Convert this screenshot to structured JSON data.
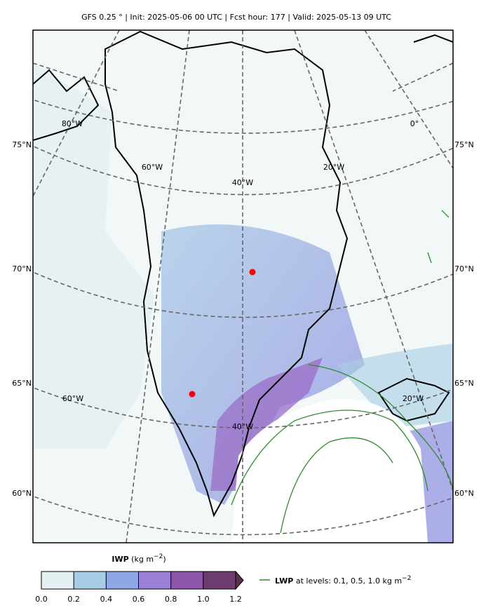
{
  "header": {
    "title": "GFS 0.25 °  |  Init: 2025-05-06 00 UTC  |  Fcst hour: 177  |  Valid: 2025-05-13 09 UTC"
  },
  "map": {
    "lat_labels": [
      "75°N",
      "70°N",
      "65°N",
      "60°N"
    ],
    "lon_labels": [
      "80°W",
      "60°W",
      "40°W",
      "20°W",
      "0°",
      "60°W",
      "20°W",
      "40°W"
    ]
  },
  "colorbar": {
    "label_bold": "IWP",
    "label_unit": "(kg m",
    "label_exp": "−2",
    "label_close": ")",
    "lim": [
      0,
      1.2
    ],
    "ticks": [
      {
        "value": 0,
        "label": "0.0"
      },
      {
        "value": 0.2,
        "label": "0.2"
      },
      {
        "value": 0.4,
        "label": "0.4"
      },
      {
        "value": 0.6,
        "label": "0.6"
      },
      {
        "value": 0.8,
        "label": "0.8"
      },
      {
        "value": 1,
        "label": "1.0"
      },
      {
        "value": 1.2,
        "label": "1.2"
      }
    ]
  },
  "legend": {
    "name": "LWP",
    "text": "at levels: 0.1, 0.5, 1.0  kg m",
    "exp": "−2"
  }
}
